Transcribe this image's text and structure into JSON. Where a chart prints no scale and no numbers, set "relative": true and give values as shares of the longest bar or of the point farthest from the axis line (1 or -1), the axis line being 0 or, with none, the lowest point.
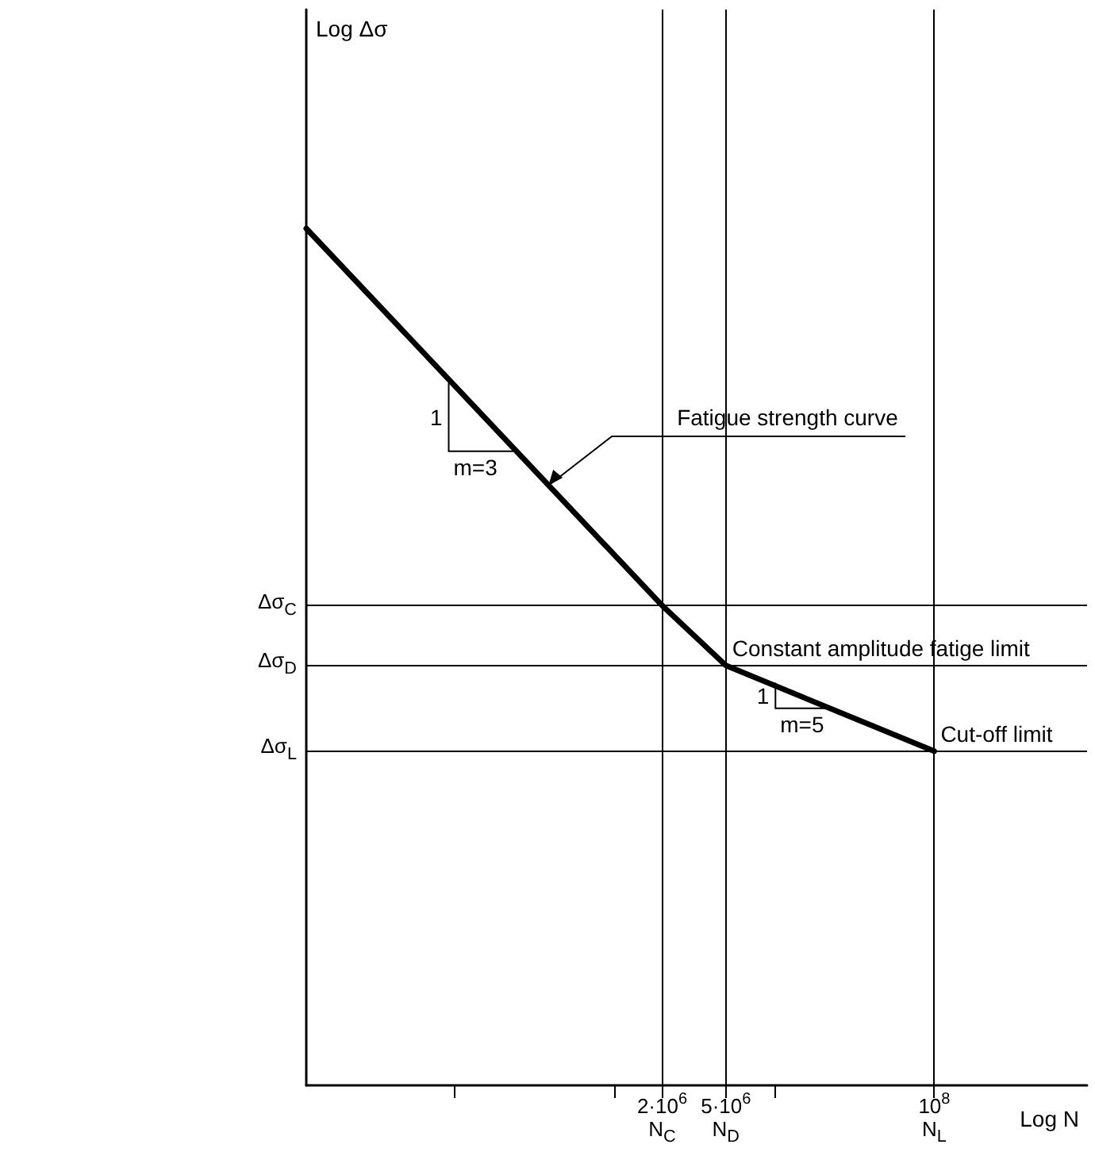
{
  "chart_data": {
    "type": "line",
    "xlabel": "Log N",
    "relative": true,
    "log": "x",
    "x": [
      12000,
      2000000,
      5000000,
      100000000
    ],
    "xlim": [
      12000,
      900000000
    ],
    "xticks": [
      {
        "value": 100000,
        "label": null
      },
      {
        "value": 1000000,
        "label": null
      },
      {
        "value": 2000000,
        "label": "2·10$^{6}$"
      },
      {
        "value": 5000000,
        "label": "5·10$^{6}$"
      },
      {
        "value": 10000000,
        "label": null
      },
      {
        "value": 100000000,
        "label": "10$^{8}$"
      }
    ],
    "series": [
      {
        "color": "#000000",
        "values": [
          1,
          0.56,
          0.49,
          0.39
        ]
      }
    ],
    "ref_lines": [
      {
        "axis": "y",
        "value": 0.56,
        "label": "Δσ$_{C}$"
      },
      {
        "axis": "y",
        "value": 0.49,
        "label": "Δσ$_{D}$"
      },
      {
        "axis": "y",
        "value": 0.39,
        "label": "Δσ$_{L}$"
      },
      {
        "axis": "x",
        "value": 2000000,
        "label": "N$_{C}$"
      },
      {
        "axis": "x",
        "value": 5000000,
        "label": "N$_{D}$"
      },
      {
        "axis": "x",
        "value": 100000000,
        "label": "N$_{L}$"
      }
    ],
    "annotations": [
      "Log Δσ",
      {
        "text": "Fatigue strength curve",
        "x": 390000,
        "y": 0.7
      },
      {
        "text": "1",
        "x": 93000,
        "y": 0.82
      },
      {
        "text": "m=3",
        "x": 235000,
        "y": 0.74
      },
      {
        "text": "1",
        "x": 10200000,
        "y": 0.47
      },
      {
        "text": "m=5",
        "x": 21800000,
        "y": 0.44
      },
      {
        "text": "Constant amplitude fatige limit",
        "x": 5000000,
        "y": 0.49
      },
      {
        "text": "Cut-off limit",
        "x": 100000000,
        "y": 0.39
      }
    ],
    "marker": "none",
    "line_style": "solid",
    "grid": false
  }
}
